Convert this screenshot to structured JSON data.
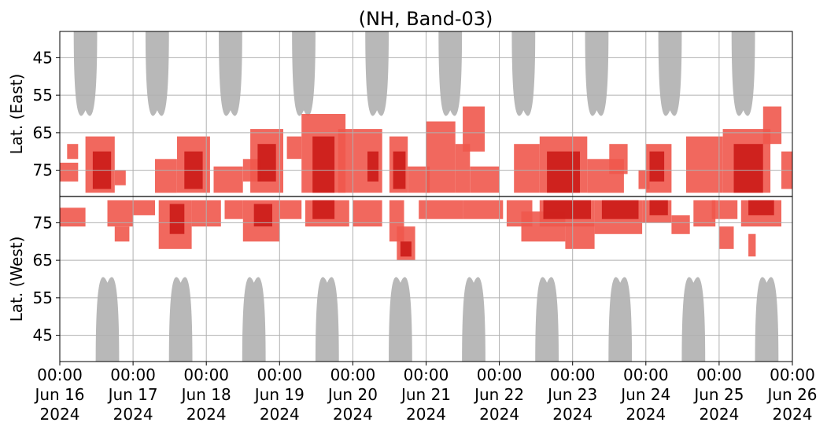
{
  "chart_data": {
    "type": "heatmap",
    "title": "(NH, Band-03)",
    "ylabel_top": "Lat. (East)",
    "ylabel_bottom": "Lat. (West)",
    "x_range_days": [
      0,
      10
    ],
    "x_ticks": [
      {
        "day": 0,
        "line1": "00:00",
        "line2": "Jun 16",
        "line3": "2024"
      },
      {
        "day": 1,
        "line1": "00:00",
        "line2": "Jun 17",
        "line3": "2024"
      },
      {
        "day": 2,
        "line1": "00:00",
        "line2": "Jun 18",
        "line3": "2024"
      },
      {
        "day": 3,
        "line1": "00:00",
        "line2": "Jun 19",
        "line3": "2024"
      },
      {
        "day": 4,
        "line1": "00:00",
        "line2": "Jun 20",
        "line3": "2024"
      },
      {
        "day": 5,
        "line1": "00:00",
        "line2": "Jun 21",
        "line3": "2024"
      },
      {
        "day": 6,
        "line1": "00:00",
        "line2": "Jun 22",
        "line3": "2024"
      },
      {
        "day": 7,
        "line1": "00:00",
        "line2": "Jun 23",
        "line3": "2024"
      },
      {
        "day": 8,
        "line1": "00:00",
        "line2": "Jun 24",
        "line3": "2024"
      },
      {
        "day": 9,
        "line1": "00:00",
        "line2": "Jun 25",
        "line3": "2024"
      },
      {
        "day": 10,
        "line1": "00:00",
        "line2": "Jun 26",
        "line3": "2024"
      }
    ],
    "y_ticks_east": [
      45,
      55,
      65,
      75
    ],
    "y_ticks_west": [
      75,
      65,
      55,
      45
    ],
    "lat_range": [
      38,
      82
    ],
    "grid": true,
    "colors": {
      "light_red": "#f0584d",
      "dark_red": "#cc1f1a",
      "gray": "#b8b8b8",
      "grid": "#b0b0b0",
      "divider": "#000000"
    },
    "gray_gaps": {
      "east_centers_day": [
        0.35,
        1.33,
        2.33,
        3.33,
        4.33,
        5.33,
        6.33,
        7.33,
        8.33,
        9.33
      ],
      "west_centers_day": [
        0.65,
        1.65,
        2.65,
        3.65,
        4.65,
        5.65,
        6.65,
        7.65,
        8.65,
        9.65
      ],
      "min_lat": 59,
      "half_width_day": 0.16
    },
    "events": [
      {
        "hemi": "east",
        "day0": 0.0,
        "day1": 0.25,
        "lat0": 73,
        "lat1": 78,
        "level": 1
      },
      {
        "hemi": "east",
        "day0": 0.1,
        "day1": 0.25,
        "lat0": 68,
        "lat1": 72,
        "level": 1
      },
      {
        "hemi": "east",
        "day0": 0.35,
        "day1": 0.75,
        "lat0": 66,
        "lat1": 81,
        "level": 1
      },
      {
        "hemi": "east",
        "day0": 0.45,
        "day1": 0.7,
        "lat0": 70,
        "lat1": 80,
        "level": 2
      },
      {
        "hemi": "east",
        "day0": 0.75,
        "day1": 0.9,
        "lat0": 75,
        "lat1": 79,
        "level": 1
      },
      {
        "hemi": "east",
        "day0": 1.3,
        "day1": 1.6,
        "lat0": 72,
        "lat1": 81,
        "level": 1
      },
      {
        "hemi": "east",
        "day0": 1.6,
        "day1": 2.05,
        "lat0": 66,
        "lat1": 81,
        "level": 1
      },
      {
        "hemi": "east",
        "day0": 1.7,
        "day1": 1.95,
        "lat0": 70,
        "lat1": 80,
        "level": 2
      },
      {
        "hemi": "east",
        "day0": 2.1,
        "day1": 2.5,
        "lat0": 74,
        "lat1": 81,
        "level": 1
      },
      {
        "hemi": "east",
        "day0": 2.5,
        "day1": 2.75,
        "lat0": 72,
        "lat1": 78,
        "level": 1
      },
      {
        "hemi": "east",
        "day0": 2.6,
        "day1": 3.05,
        "lat0": 64,
        "lat1": 81,
        "level": 1
      },
      {
        "hemi": "east",
        "day0": 2.7,
        "day1": 2.95,
        "lat0": 68,
        "lat1": 78,
        "level": 2
      },
      {
        "hemi": "east",
        "day0": 3.1,
        "day1": 3.3,
        "lat0": 66,
        "lat1": 72,
        "level": 1
      },
      {
        "hemi": "east",
        "day0": 3.3,
        "day1": 3.9,
        "lat0": 60,
        "lat1": 81,
        "level": 1
      },
      {
        "hemi": "east",
        "day0": 3.45,
        "day1": 3.75,
        "lat0": 66,
        "lat1": 81,
        "level": 2
      },
      {
        "hemi": "east",
        "day0": 3.8,
        "day1": 4.4,
        "lat0": 64,
        "lat1": 81,
        "level": 1
      },
      {
        "hemi": "east",
        "day0": 4.2,
        "day1": 4.35,
        "lat0": 70,
        "lat1": 78,
        "level": 2
      },
      {
        "hemi": "east",
        "day0": 4.5,
        "day1": 4.75,
        "lat0": 66,
        "lat1": 81,
        "level": 1
      },
      {
        "hemi": "east",
        "day0": 4.55,
        "day1": 4.72,
        "lat0": 70,
        "lat1": 80,
        "level": 2
      },
      {
        "hemi": "east",
        "day0": 4.75,
        "day1": 5.05,
        "lat0": 74,
        "lat1": 81,
        "level": 1
      },
      {
        "hemi": "east",
        "day0": 5.0,
        "day1": 5.4,
        "lat0": 62,
        "lat1": 81,
        "level": 1
      },
      {
        "hemi": "east",
        "day0": 5.4,
        "day1": 5.6,
        "lat0": 68,
        "lat1": 81,
        "level": 1
      },
      {
        "hemi": "east",
        "day0": 5.5,
        "day1": 5.8,
        "lat0": 58,
        "lat1": 70,
        "level": 1
      },
      {
        "hemi": "east",
        "day0": 5.6,
        "day1": 6.0,
        "lat0": 74,
        "lat1": 81,
        "level": 1
      },
      {
        "hemi": "east",
        "day0": 6.2,
        "day1": 6.55,
        "lat0": 68,
        "lat1": 81,
        "level": 1
      },
      {
        "hemi": "east",
        "day0": 6.55,
        "day1": 7.2,
        "lat0": 66,
        "lat1": 81,
        "level": 1
      },
      {
        "hemi": "east",
        "day0": 6.65,
        "day1": 7.1,
        "lat0": 70,
        "lat1": 81,
        "level": 2
      },
      {
        "hemi": "east",
        "day0": 7.2,
        "day1": 7.7,
        "lat0": 72,
        "lat1": 81,
        "level": 1
      },
      {
        "hemi": "east",
        "day0": 7.5,
        "day1": 7.75,
        "lat0": 68,
        "lat1": 76,
        "level": 1
      },
      {
        "hemi": "east",
        "day0": 7.9,
        "day1": 8.05,
        "lat0": 75,
        "lat1": 80,
        "level": 1
      },
      {
        "hemi": "east",
        "day0": 8.0,
        "day1": 8.35,
        "lat0": 68,
        "lat1": 81,
        "level": 1
      },
      {
        "hemi": "east",
        "day0": 8.05,
        "day1": 8.25,
        "lat0": 70,
        "lat1": 78,
        "level": 2
      },
      {
        "hemi": "east",
        "day0": 8.55,
        "day1": 9.05,
        "lat0": 66,
        "lat1": 81,
        "level": 1
      },
      {
        "hemi": "east",
        "day0": 9.05,
        "day1": 9.7,
        "lat0": 64,
        "lat1": 81,
        "level": 1
      },
      {
        "hemi": "east",
        "day0": 9.2,
        "day1": 9.6,
        "lat0": 68,
        "lat1": 81,
        "level": 2
      },
      {
        "hemi": "east",
        "day0": 9.6,
        "day1": 9.85,
        "lat0": 58,
        "lat1": 68,
        "level": 1
      },
      {
        "hemi": "east",
        "day0": 9.85,
        "day1": 10.0,
        "lat0": 70,
        "lat1": 80,
        "level": 1
      },
      {
        "hemi": "west",
        "day0": 0.0,
        "day1": 0.35,
        "lat0": 74,
        "lat1": 79,
        "level": 1
      },
      {
        "hemi": "west",
        "day0": 0.65,
        "day1": 1.0,
        "lat0": 74,
        "lat1": 81,
        "level": 1
      },
      {
        "hemi": "west",
        "day0": 0.75,
        "day1": 0.95,
        "lat0": 70,
        "lat1": 74,
        "level": 1
      },
      {
        "hemi": "west",
        "day0": 1.0,
        "day1": 1.3,
        "lat0": 77,
        "lat1": 81,
        "level": 1
      },
      {
        "hemi": "west",
        "day0": 1.35,
        "day1": 1.8,
        "lat0": 68,
        "lat1": 81,
        "level": 1
      },
      {
        "hemi": "west",
        "day0": 1.5,
        "day1": 1.7,
        "lat0": 72,
        "lat1": 80,
        "level": 2
      },
      {
        "hemi": "west",
        "day0": 1.8,
        "day1": 2.2,
        "lat0": 74,
        "lat1": 81,
        "level": 1
      },
      {
        "hemi": "west",
        "day0": 2.25,
        "day1": 2.5,
        "lat0": 76,
        "lat1": 81,
        "level": 1
      },
      {
        "hemi": "west",
        "day0": 2.5,
        "day1": 3.0,
        "lat0": 70,
        "lat1": 81,
        "level": 1
      },
      {
        "hemi": "west",
        "day0": 2.65,
        "day1": 2.9,
        "lat0": 74,
        "lat1": 80,
        "level": 2
      },
      {
        "hemi": "west",
        "day0": 3.0,
        "day1": 3.3,
        "lat0": 76,
        "lat1": 81,
        "level": 1
      },
      {
        "hemi": "west",
        "day0": 3.35,
        "day1": 3.95,
        "lat0": 74,
        "lat1": 81,
        "level": 1
      },
      {
        "hemi": "west",
        "day0": 3.45,
        "day1": 3.75,
        "lat0": 76,
        "lat1": 81,
        "level": 2
      },
      {
        "hemi": "west",
        "day0": 4.0,
        "day1": 4.4,
        "lat0": 74,
        "lat1": 81,
        "level": 1
      },
      {
        "hemi": "west",
        "day0": 4.5,
        "day1": 4.7,
        "lat0": 70,
        "lat1": 81,
        "level": 1
      },
      {
        "hemi": "west",
        "day0": 4.6,
        "day1": 4.85,
        "lat0": 65,
        "lat1": 74,
        "level": 1
      },
      {
        "hemi": "west",
        "day0": 4.65,
        "day1": 4.8,
        "lat0": 66,
        "lat1": 70,
        "level": 2
      },
      {
        "hemi": "west",
        "day0": 4.9,
        "day1": 5.5,
        "lat0": 76,
        "lat1": 81,
        "level": 1
      },
      {
        "hemi": "west",
        "day0": 5.5,
        "day1": 6.05,
        "lat0": 76,
        "lat1": 81,
        "level": 1
      },
      {
        "hemi": "west",
        "day0": 6.1,
        "day1": 6.45,
        "lat0": 74,
        "lat1": 81,
        "level": 1
      },
      {
        "hemi": "west",
        "day0": 6.3,
        "day1": 6.9,
        "lat0": 70,
        "lat1": 78,
        "level": 1
      },
      {
        "hemi": "west",
        "day0": 6.55,
        "day1": 7.3,
        "lat0": 74,
        "lat1": 81,
        "level": 1
      },
      {
        "hemi": "west",
        "day0": 6.6,
        "day1": 7.25,
        "lat0": 76,
        "lat1": 81,
        "level": 2
      },
      {
        "hemi": "west",
        "day0": 6.9,
        "day1": 7.3,
        "lat0": 68,
        "lat1": 75,
        "level": 1
      },
      {
        "hemi": "west",
        "day0": 7.3,
        "day1": 7.95,
        "lat0": 72,
        "lat1": 81,
        "level": 1
      },
      {
        "hemi": "west",
        "day0": 7.4,
        "day1": 7.9,
        "lat0": 76,
        "lat1": 81,
        "level": 2
      },
      {
        "hemi": "west",
        "day0": 7.95,
        "day1": 8.35,
        "lat0": 75,
        "lat1": 81,
        "level": 1
      },
      {
        "hemi": "west",
        "day0": 8.05,
        "day1": 8.3,
        "lat0": 77,
        "lat1": 81,
        "level": 2
      },
      {
        "hemi": "west",
        "day0": 8.35,
        "day1": 8.6,
        "lat0": 72,
        "lat1": 77,
        "level": 1
      },
      {
        "hemi": "west",
        "day0": 8.65,
        "day1": 8.95,
        "lat0": 74,
        "lat1": 81,
        "level": 1
      },
      {
        "hemi": "west",
        "day0": 8.9,
        "day1": 9.25,
        "lat0": 76,
        "lat1": 81,
        "level": 1
      },
      {
        "hemi": "west",
        "day0": 9.0,
        "day1": 9.2,
        "lat0": 68,
        "lat1": 74,
        "level": 1
      },
      {
        "hemi": "west",
        "day0": 9.3,
        "day1": 9.85,
        "lat0": 74,
        "lat1": 81,
        "level": 1
      },
      {
        "hemi": "west",
        "day0": 9.4,
        "day1": 9.75,
        "lat0": 77,
        "lat1": 81,
        "level": 2
      },
      {
        "hemi": "west",
        "day0": 9.4,
        "day1": 9.5,
        "lat0": 66,
        "lat1": 72,
        "level": 1
      }
    ]
  }
}
